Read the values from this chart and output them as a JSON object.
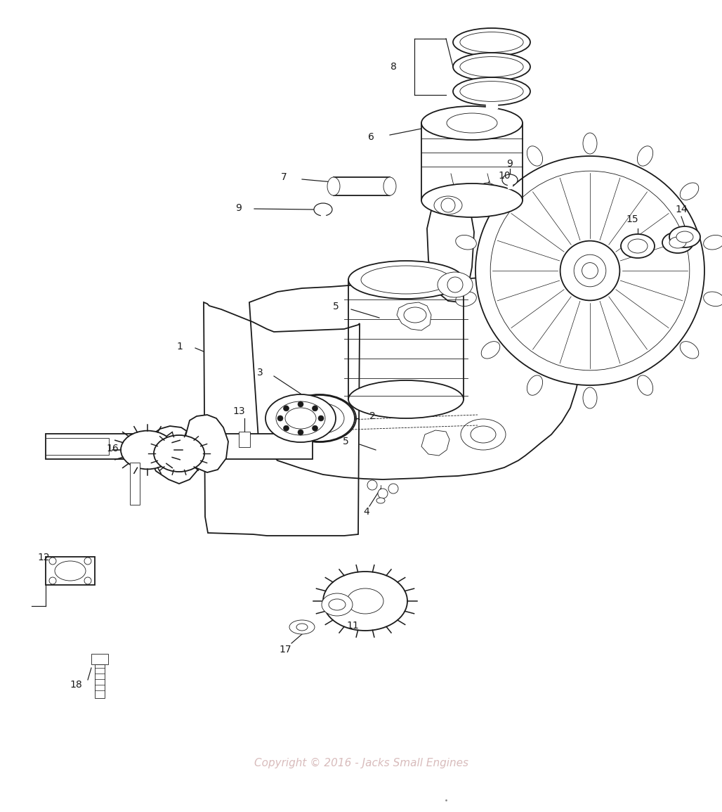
{
  "bg_color": "#ffffff",
  "line_color": "#1a1a1a",
  "watermark_text": "Copyright © 2016 - Jacks Small Engines",
  "watermark_color": "#c8a0a0",
  "figsize": [
    10.28,
    11.55
  ],
  "dpi": 100
}
